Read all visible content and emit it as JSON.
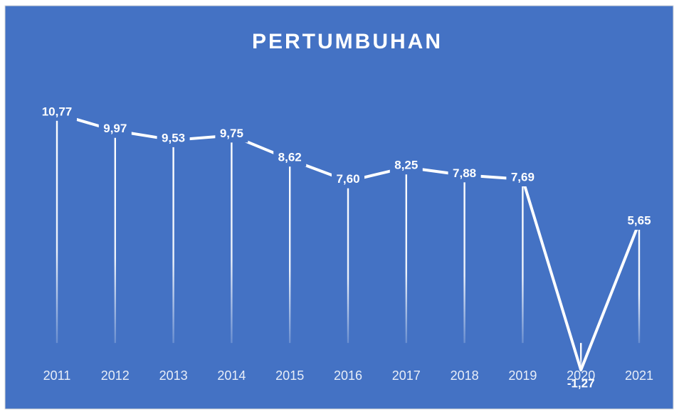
{
  "chart_data": {
    "type": "line",
    "title": "PERTUMBUHAN",
    "categories": [
      "2011",
      "2012",
      "2013",
      "2014",
      "2015",
      "2016",
      "2017",
      "2018",
      "2019",
      "2020",
      "2021"
    ],
    "values": [
      10.77,
      9.97,
      9.53,
      9.75,
      8.62,
      7.6,
      8.25,
      7.88,
      7.69,
      -1.27,
      5.65
    ],
    "value_labels": [
      "10,77",
      "9,97",
      "9,53",
      "9,75",
      "8,62",
      "7,60",
      "8,25",
      "7,88",
      "7,69",
      "-1,27",
      "5,65"
    ],
    "color": "#ffffff",
    "background": "#4472c4",
    "ylim": [
      -2,
      12
    ]
  }
}
